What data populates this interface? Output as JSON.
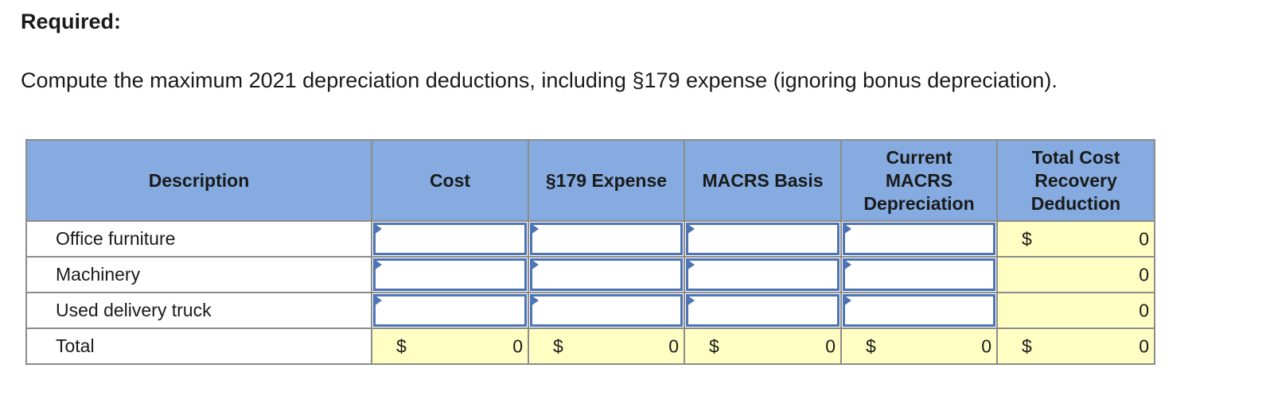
{
  "heading": "Required:",
  "prompt": "Compute the maximum 2021 depreciation deductions, including §179 expense (ignoring bonus depreciation).",
  "table": {
    "headers": {
      "description": "Description",
      "cost": "Cost",
      "sec179": "§179 Expense",
      "macrs_basis": "MACRS Basis",
      "current_macrs": [
        "Current",
        "MACRS",
        "Depreciation"
      ],
      "total_cost_recovery": [
        "Total Cost",
        "Recovery",
        "Deduction"
      ]
    },
    "rows": [
      {
        "description": "Office furniture",
        "cost": "",
        "sec179": "",
        "macrs_basis": "",
        "current_macrs": "",
        "total_currency": "$",
        "total_value": "0"
      },
      {
        "description": "Machinery",
        "cost": "",
        "sec179": "",
        "macrs_basis": "",
        "current_macrs": "",
        "total_currency": "",
        "total_value": "0"
      },
      {
        "description": "Used delivery truck",
        "cost": "",
        "sec179": "",
        "macrs_basis": "",
        "current_macrs": "",
        "total_currency": "",
        "total_value": "0"
      }
    ],
    "total_row": {
      "label": "Total",
      "currency": "$",
      "cost": "0",
      "sec179": "0",
      "macrs_basis": "0",
      "current_macrs": "0",
      "total_cost_recovery": "0"
    }
  },
  "colors": {
    "header_bg": "#85abe0",
    "calc_bg": "#ffffc4",
    "input_border": "#4d74b4",
    "grid_border": "#8c8c8c"
  }
}
